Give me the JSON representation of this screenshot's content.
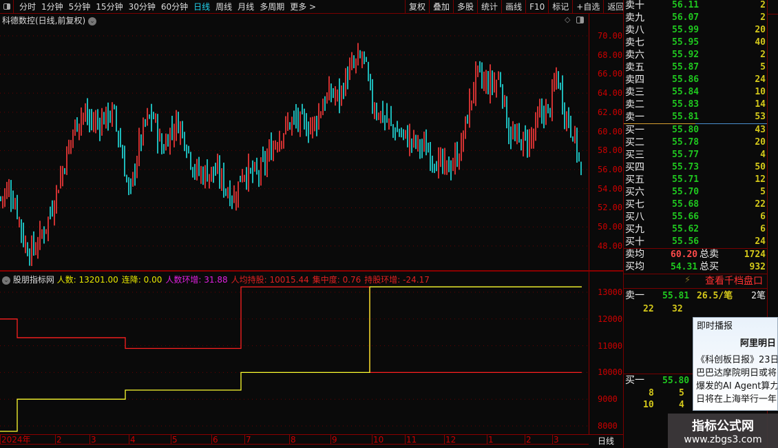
{
  "toolbar": {
    "periods": [
      "分时",
      "1分钟",
      "5分钟",
      "15分钟",
      "30分钟",
      "60分钟",
      "日线",
      "周线",
      "月线",
      "多周期",
      "更多 >"
    ],
    "active": "日线",
    "right_buttons": [
      "复权",
      "叠加",
      "多股",
      "统计",
      "画线",
      "F10",
      "标记",
      "+自选",
      "返回"
    ]
  },
  "chart": {
    "title": "科德数控(日线,前复权)",
    "y_ticks": [
      "70.00",
      "68.00",
      "66.00",
      "64.00",
      "62.00",
      "60.00",
      "58.00",
      "56.00",
      "54.00",
      "52.00",
      "50.00",
      "48.00"
    ],
    "up_color": "#ff3b3b",
    "down_color": "#22e5e5"
  },
  "chart_data": {
    "type": "candlestick",
    "ylim": [
      46,
      72
    ],
    "approx_closes": [
      53,
      54,
      52,
      48,
      47.5,
      49,
      51,
      54,
      57,
      60,
      62,
      61,
      61,
      61.5,
      62,
      58,
      53,
      58,
      61,
      61.5,
      58,
      60,
      61,
      59,
      56,
      55.5,
      55.8,
      55.5,
      54,
      53,
      56,
      55.5,
      55.5,
      57,
      59,
      60,
      61,
      61,
      60.5,
      61,
      63,
      64,
      63.5,
      66,
      67,
      68,
      63,
      62,
      61,
      60,
      59.5,
      59,
      58.5,
      58,
      57,
      56,
      56.5,
      58,
      62,
      66,
      65,
      65,
      65.5,
      60,
      59,
      59,
      59.5,
      62,
      62,
      66,
      62,
      60,
      56
    ]
  },
  "indicator": {
    "name": "股朋指标网",
    "items": [
      {
        "label": "人数: 13201.00",
        "color": "#e8e800"
      },
      {
        "label": "连降: 0.00",
        "color": "#e8e800"
      },
      {
        "label": "人数环增: 31.88",
        "color": "#e020e0"
      },
      {
        "label": "人均持股: 10015.44",
        "color": "#e02020"
      },
      {
        "label": "集中度: 0.76",
        "color": "#e02020"
      },
      {
        "label": "持股环增: -24.17",
        "color": "#e02020"
      }
    ],
    "y_ticks": [
      "13000",
      "12000",
      "11000",
      "10000",
      "9000",
      "8000"
    ],
    "ylim": [
      7600,
      13400
    ],
    "red_line": [
      [
        0,
        12000
      ],
      [
        1,
        11300
      ],
      [
        2,
        10900
      ],
      [
        3,
        13200
      ],
      [
        4,
        10000
      ]
    ],
    "yellow_line": [
      [
        0,
        7800
      ],
      [
        1,
        9000
      ],
      [
        2,
        9340
      ],
      [
        3,
        10000
      ],
      [
        4,
        13201
      ]
    ]
  },
  "xaxis": {
    "labels": [
      "2024年",
      "2",
      "3",
      "4",
      "5",
      "6",
      "7",
      "8",
      "9",
      "10",
      "11",
      "12",
      "1",
      "2",
      "3"
    ],
    "period_label": "日线"
  },
  "orderbook": {
    "sells": [
      [
        "卖十",
        "56.11",
        "2"
      ],
      [
        "卖九",
        "56.07",
        "2"
      ],
      [
        "卖八",
        "55.99",
        "20"
      ],
      [
        "卖七",
        "55.95",
        "40"
      ],
      [
        "卖六",
        "55.92",
        "2"
      ],
      [
        "卖五",
        "55.87",
        "5"
      ],
      [
        "卖四",
        "55.86",
        "24"
      ],
      [
        "卖三",
        "55.84",
        "10"
      ],
      [
        "卖二",
        "55.83",
        "14"
      ],
      [
        "卖一",
        "55.81",
        "53"
      ]
    ],
    "buys": [
      [
        "买一",
        "55.80",
        "43"
      ],
      [
        "买二",
        "55.78",
        "20"
      ],
      [
        "买三",
        "55.77",
        "4"
      ],
      [
        "买四",
        "55.73",
        "50"
      ],
      [
        "买五",
        "55.71",
        "12"
      ],
      [
        "买六",
        "55.70",
        "5"
      ],
      [
        "买七",
        "55.68",
        "22"
      ],
      [
        "买八",
        "55.66",
        "6"
      ],
      [
        "买九",
        "55.62",
        "6"
      ],
      [
        "买十",
        "55.56",
        "24"
      ]
    ],
    "sell_avg_label": "卖均",
    "sell_avg": "60.20",
    "total_sell_label": "总卖",
    "total_sell": "1724",
    "buy_avg_label": "买均",
    "buy_avg": "54.31",
    "total_buy_label": "总买",
    "total_buy": "932",
    "depth_link": "查看千档盘口",
    "q_sell": {
      "label": "卖一",
      "price": "55.81",
      "per": "26.5/笔",
      "count": "2笔",
      "qty": [
        "22",
        "32"
      ]
    },
    "q_buy": {
      "label": "买一",
      "price": "55.80",
      "qty": [
        [
          "8",
          "5"
        ],
        [
          "10",
          "4"
        ]
      ]
    }
  },
  "popup": {
    "title": "即时播报",
    "headline": "阿里明日",
    "lines": [
      "《科创板日报》23日",
      "巴巴达摩院明日或将",
      "爆发的AI Agent算力",
      "日将在上海举行一年"
    ]
  },
  "watermark": {
    "name": "指标公式网",
    "url": "www.zbgs3.com"
  }
}
